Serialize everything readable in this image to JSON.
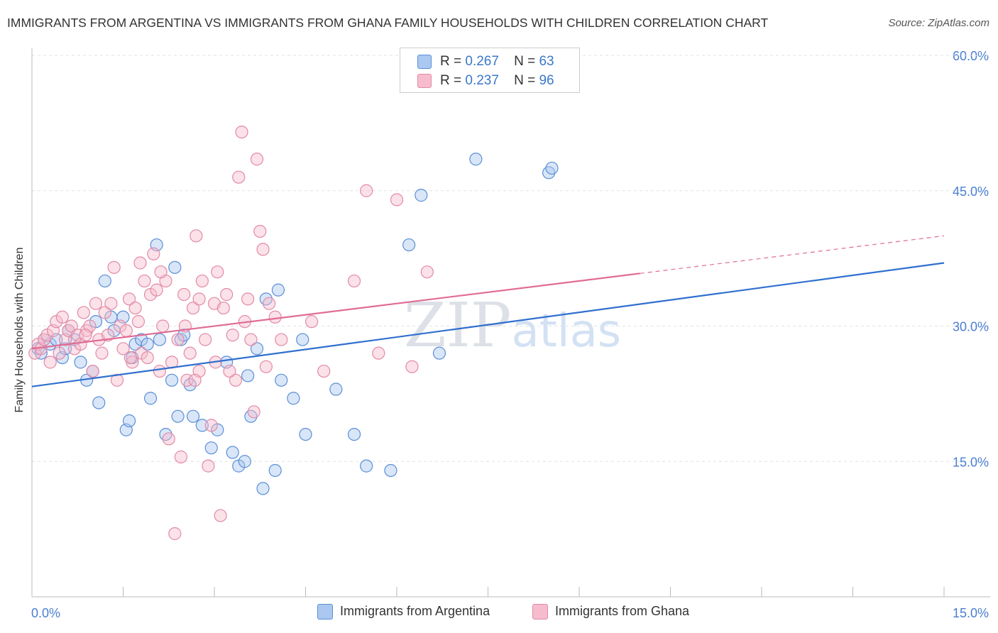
{
  "title": "IMMIGRANTS FROM ARGENTINA VS IMMIGRANTS FROM GHANA FAMILY HOUSEHOLDS WITH CHILDREN CORRELATION CHART",
  "source": "Source: ZipAtlas.com",
  "watermark": "ZIPatlas",
  "colors": {
    "argentina_fill": "#aac8f0",
    "argentina_stroke": "#5b8fd6",
    "argentina_line": "#2f6fcf",
    "ghana_fill": "#f6bccd",
    "ghana_stroke": "#e28aa8",
    "ghana_line": "#e06c93",
    "tick_label": "#4a7fd1",
    "grid": "#dde3ea"
  },
  "legend": {
    "rows": [
      {
        "r_label": "R =",
        "r_value": "0.267",
        "n_label": "N =",
        "n_value": "63"
      },
      {
        "r_label": "R =",
        "r_value": "0.237",
        "n_label": "N =",
        "n_value": "96"
      }
    ]
  },
  "chart_data": {
    "type": "scatter",
    "title": "IMMIGRANTS FROM ARGENTINA VS IMMIGRANTS FROM GHANA FAMILY HOUSEHOLDS WITH CHILDREN CORRELATION CHART",
    "xlabel": "",
    "ylabel": "Family Households with Children",
    "xlim": [
      0,
      15
    ],
    "ylim": [
      0,
      60
    ],
    "x_tick_labels": [
      "0.0%",
      "15.0%"
    ],
    "y_ticks": [
      15,
      30,
      45,
      60
    ],
    "y_tick_labels": [
      "15.0%",
      "30.0%",
      "45.0%",
      "60.0%"
    ],
    "legend_position": "top-center",
    "series": [
      {
        "name": "Immigrants from Argentina",
        "r": 0.267,
        "n": 63,
        "trend": {
          "x0": 0,
          "y0": 23.3,
          "x1": 15,
          "y1": 37.0,
          "dashed_from": null
        },
        "points": [
          [
            0.1,
            27.5
          ],
          [
            0.15,
            27.0
          ],
          [
            0.2,
            28.5
          ],
          [
            0.3,
            28.0
          ],
          [
            0.4,
            28.5
          ],
          [
            0.5,
            26.5
          ],
          [
            0.55,
            27.5
          ],
          [
            0.6,
            29.5
          ],
          [
            0.7,
            28.5
          ],
          [
            0.8,
            26.0
          ],
          [
            0.9,
            24.0
          ],
          [
            1.0,
            25.0
          ],
          [
            1.05,
            30.5
          ],
          [
            1.1,
            21.5
          ],
          [
            1.2,
            35.0
          ],
          [
            1.3,
            31.0
          ],
          [
            1.35,
            29.5
          ],
          [
            1.5,
            31.0
          ],
          [
            1.55,
            18.5
          ],
          [
            1.6,
            19.5
          ],
          [
            1.65,
            26.5
          ],
          [
            1.7,
            28.0
          ],
          [
            1.8,
            28.5
          ],
          [
            1.9,
            28.0
          ],
          [
            1.95,
            22.0
          ],
          [
            2.05,
            39.0
          ],
          [
            2.1,
            28.5
          ],
          [
            2.2,
            18.0
          ],
          [
            2.3,
            24.0
          ],
          [
            2.35,
            36.5
          ],
          [
            2.4,
            20.0
          ],
          [
            2.45,
            28.5
          ],
          [
            2.5,
            29.0
          ],
          [
            2.6,
            23.5
          ],
          [
            2.65,
            20.0
          ],
          [
            2.8,
            19.0
          ],
          [
            2.95,
            16.5
          ],
          [
            3.05,
            18.5
          ],
          [
            3.2,
            26.0
          ],
          [
            3.3,
            16.0
          ],
          [
            3.4,
            14.5
          ],
          [
            3.5,
            15.0
          ],
          [
            3.55,
            24.5
          ],
          [
            3.6,
            20.0
          ],
          [
            3.7,
            27.5
          ],
          [
            3.8,
            12.0
          ],
          [
            3.85,
            33.0
          ],
          [
            4.0,
            14.0
          ],
          [
            4.05,
            34.0
          ],
          [
            4.1,
            24.0
          ],
          [
            4.3,
            22.0
          ],
          [
            4.45,
            28.5
          ],
          [
            4.5,
            18.0
          ],
          [
            5.0,
            23.0
          ],
          [
            5.3,
            18.0
          ],
          [
            5.5,
            14.5
          ],
          [
            5.9,
            14.0
          ],
          [
            6.2,
            39.0
          ],
          [
            6.4,
            44.5
          ],
          [
            7.3,
            48.5
          ],
          [
            8.5,
            47.0
          ],
          [
            8.55,
            47.5
          ],
          [
            6.7,
            27.0
          ]
        ]
      },
      {
        "name": "Immigrants from Ghana",
        "r": 0.237,
        "n": 96,
        "trend": {
          "x0": 0,
          "y0": 27.5,
          "x1": 15,
          "y1": 40.0,
          "dashed_from": 10.0
        },
        "points": [
          [
            0.05,
            27.0
          ],
          [
            0.1,
            28.0
          ],
          [
            0.15,
            27.5
          ],
          [
            0.2,
            28.5
          ],
          [
            0.25,
            29.0
          ],
          [
            0.3,
            26.0
          ],
          [
            0.35,
            29.5
          ],
          [
            0.4,
            30.5
          ],
          [
            0.45,
            27.0
          ],
          [
            0.5,
            31.0
          ],
          [
            0.55,
            28.5
          ],
          [
            0.6,
            29.5
          ],
          [
            0.65,
            30.0
          ],
          [
            0.7,
            27.5
          ],
          [
            0.75,
            29.0
          ],
          [
            0.8,
            28.0
          ],
          [
            0.85,
            31.5
          ],
          [
            0.9,
            29.5
          ],
          [
            0.95,
            30.0
          ],
          [
            1.0,
            25.0
          ],
          [
            1.05,
            32.5
          ],
          [
            1.1,
            28.5
          ],
          [
            1.15,
            27.0
          ],
          [
            1.2,
            31.5
          ],
          [
            1.25,
            29.0
          ],
          [
            1.3,
            32.5
          ],
          [
            1.35,
            36.5
          ],
          [
            1.4,
            24.0
          ],
          [
            1.45,
            30.0
          ],
          [
            1.5,
            27.5
          ],
          [
            1.55,
            29.5
          ],
          [
            1.6,
            33.0
          ],
          [
            1.65,
            26.0
          ],
          [
            1.7,
            32.0
          ],
          [
            1.75,
            30.5
          ],
          [
            1.8,
            27.0
          ],
          [
            1.85,
            35.0
          ],
          [
            1.9,
            26.5
          ],
          [
            1.95,
            33.5
          ],
          [
            2.0,
            38.0
          ],
          [
            2.05,
            34.0
          ],
          [
            2.1,
            25.0
          ],
          [
            2.15,
            30.0
          ],
          [
            2.2,
            35.0
          ],
          [
            2.25,
            17.5
          ],
          [
            2.3,
            26.0
          ],
          [
            2.35,
            7.0
          ],
          [
            2.4,
            28.5
          ],
          [
            2.45,
            15.5
          ],
          [
            2.5,
            33.5
          ],
          [
            2.55,
            24.0
          ],
          [
            2.6,
            27.0
          ],
          [
            2.65,
            32.0
          ],
          [
            2.7,
            40.0
          ],
          [
            2.75,
            25.0
          ],
          [
            2.8,
            35.0
          ],
          [
            2.85,
            28.5
          ],
          [
            2.9,
            14.5
          ],
          [
            2.95,
            19.0
          ],
          [
            3.0,
            32.5
          ],
          [
            3.05,
            36.0
          ],
          [
            3.1,
            9.0
          ],
          [
            3.15,
            32.0
          ],
          [
            3.2,
            33.5
          ],
          [
            3.3,
            29.0
          ],
          [
            3.35,
            24.0
          ],
          [
            3.4,
            46.5
          ],
          [
            3.45,
            51.5
          ],
          [
            3.5,
            30.5
          ],
          [
            3.55,
            33.0
          ],
          [
            3.6,
            28.5
          ],
          [
            3.65,
            20.5
          ],
          [
            3.7,
            48.5
          ],
          [
            3.75,
            40.5
          ],
          [
            3.8,
            38.5
          ],
          [
            3.85,
            25.5
          ],
          [
            3.9,
            32.5
          ],
          [
            4.0,
            31.0
          ],
          [
            4.1,
            28.5
          ],
          [
            4.6,
            30.5
          ],
          [
            4.8,
            25.0
          ],
          [
            5.3,
            35.0
          ],
          [
            5.5,
            45.0
          ],
          [
            5.7,
            27.0
          ],
          [
            6.0,
            44.0
          ],
          [
            6.25,
            25.5
          ],
          [
            6.5,
            36.0
          ],
          [
            3.25,
            25.0
          ],
          [
            2.75,
            33.0
          ],
          [
            2.12,
            36.0
          ],
          [
            1.78,
            37.0
          ],
          [
            0.88,
            29.0
          ],
          [
            1.62,
            26.5
          ],
          [
            2.52,
            30.0
          ],
          [
            3.02,
            26.0
          ],
          [
            2.68,
            24.0
          ]
        ]
      }
    ]
  },
  "bottom_legend": [
    "Immigrants from Argentina",
    "Immigrants from Ghana"
  ]
}
